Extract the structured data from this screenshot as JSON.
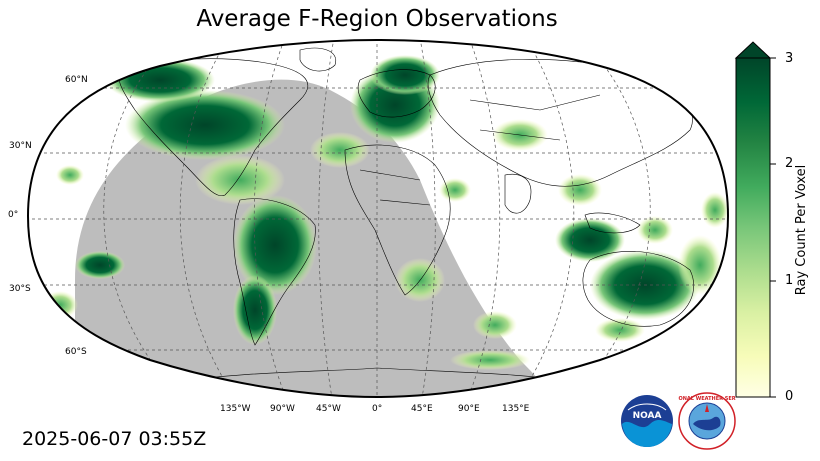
{
  "title": "Average F-Region Observations",
  "timestamp": "2025-06-07 03:55Z",
  "map": {
    "projection": "Robinson",
    "lat_labels": [
      "60°N",
      "30°N",
      "0°",
      "30°S",
      "60°S"
    ],
    "lon_labels": [
      "135°W",
      "90°W",
      "45°W",
      "0°",
      "45°E",
      "90°E",
      "135°E"
    ],
    "night_shade_color": "#bdbdbd",
    "gridlines": "dashed",
    "coastlines": true
  },
  "colorbar": {
    "label": "Ray Count Per Voxel",
    "ticks": [
      "0",
      "1",
      "2",
      "3"
    ],
    "range": [
      0,
      3
    ],
    "extend": "max",
    "colormap": "YlGn",
    "colors": [
      "#ffffe5",
      "#f7fcb9",
      "#d9f0a3",
      "#addd8e",
      "#78c679",
      "#41ab5d",
      "#238443",
      "#006837",
      "#004529"
    ]
  },
  "logos": [
    "noaa-logo",
    "national-weather-service-logo"
  ],
  "nws_logo_text": "NATIONAL WEATHER SERVICE"
}
